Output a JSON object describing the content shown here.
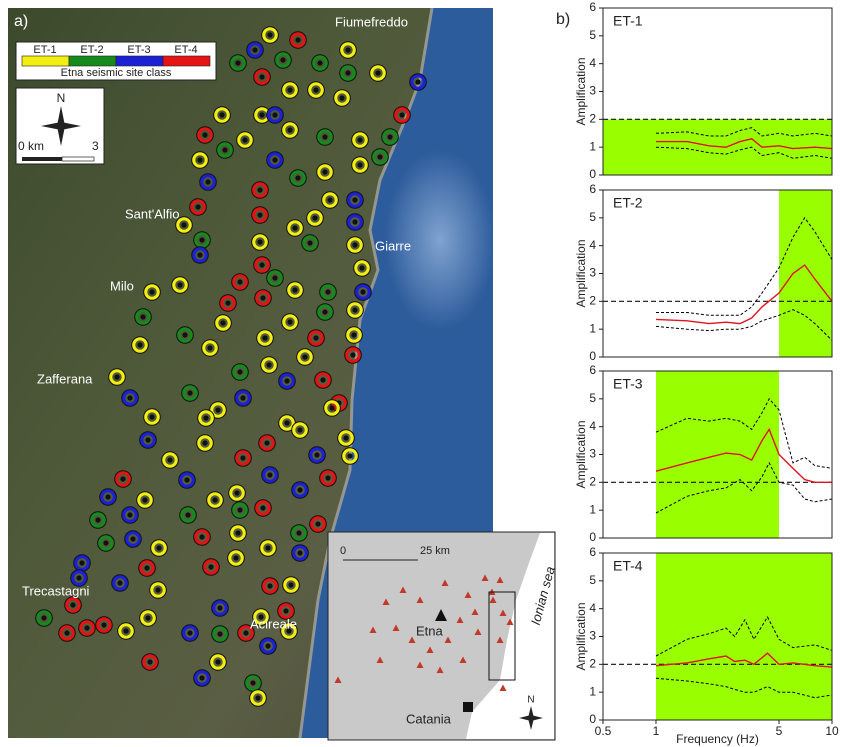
{
  "panel_a_label": "a)",
  "panel_b_label": "b)",
  "map": {
    "legend": {
      "title": "Etna seismic site class",
      "classes": [
        {
          "label": "ET-1",
          "color": "#f2ee12"
        },
        {
          "label": "ET-2",
          "color": "#168a1c"
        },
        {
          "label": "ET-3",
          "color": "#1c22d4"
        },
        {
          "label": "ET-4",
          "color": "#e51414"
        }
      ]
    },
    "north": "N",
    "scale_start": "0 km",
    "scale_end": "3",
    "places": [
      "Fiumefreddo",
      "Sant'Alfio",
      "Giarre",
      "Milo",
      "Zafferana",
      "Trecastagni",
      "Acireale"
    ],
    "inset": {
      "scale_start": "0",
      "scale_end": "25 km",
      "volcano": "Etna",
      "city": "Catania",
      "sea": "Ionian sea",
      "north": "N"
    }
  },
  "chart_data": [
    {
      "type": "line",
      "label": "ET-1",
      "xscale": "log",
      "xlim": [
        0.5,
        10
      ],
      "ylim": [
        0,
        6
      ],
      "yticks": [
        0,
        1,
        2,
        3,
        4,
        5,
        6
      ],
      "ylabel": "Amplification",
      "reference_line": 2,
      "highlight": {
        "xlim": [
          0.5,
          10
        ],
        "ylim": [
          0,
          2
        ],
        "color": "#99ff00"
      },
      "x": [
        1,
        1.5,
        2,
        2.5,
        3,
        3.5,
        4,
        5,
        6,
        8,
        10
      ],
      "series": [
        {
          "color": "#e0141e",
          "dash": "solid",
          "values": [
            1.2,
            1.2,
            1.05,
            1.0,
            1.2,
            1.3,
            1.0,
            1.05,
            0.95,
            1.0,
            0.95
          ]
        },
        {
          "color": "#000000",
          "dash": "dashed",
          "values": [
            1.5,
            1.55,
            1.4,
            1.4,
            1.6,
            1.7,
            1.4,
            1.5,
            1.4,
            1.5,
            1.4
          ]
        },
        {
          "color": "#000000",
          "dash": "dashed",
          "values": [
            1.0,
            0.95,
            0.8,
            0.75,
            0.9,
            1.0,
            0.7,
            0.8,
            0.6,
            0.7,
            0.6
          ]
        }
      ]
    },
    {
      "type": "line",
      "label": "ET-2",
      "xscale": "log",
      "xlim": [
        0.5,
        10
      ],
      "ylim": [
        0,
        6
      ],
      "yticks": [
        0,
        1,
        2,
        3,
        4,
        5,
        6
      ],
      "ylabel": "Amplification",
      "reference_line": 2,
      "highlight": {
        "xlim": [
          5,
          10
        ],
        "ylim": [
          0,
          6
        ],
        "color": "#99ff00"
      },
      "x": [
        1,
        1.5,
        2,
        2.5,
        3,
        3.5,
        4,
        5,
        6,
        7,
        8,
        10
      ],
      "series": [
        {
          "color": "#e0141e",
          "dash": "solid",
          "values": [
            1.35,
            1.3,
            1.2,
            1.25,
            1.2,
            1.4,
            1.8,
            2.3,
            3.0,
            3.3,
            2.8,
            2.0
          ]
        },
        {
          "color": "#000000",
          "dash": "dashed",
          "values": [
            1.6,
            1.6,
            1.5,
            1.5,
            1.5,
            1.8,
            2.3,
            3.2,
            4.3,
            5.0,
            4.5,
            3.5
          ]
        },
        {
          "color": "#000000",
          "dash": "dashed",
          "values": [
            1.1,
            1.0,
            0.95,
            1.0,
            1.0,
            1.1,
            1.3,
            1.5,
            1.7,
            1.5,
            1.2,
            0.6
          ]
        }
      ]
    },
    {
      "type": "line",
      "label": "ET-3",
      "xscale": "log",
      "xlim": [
        0.5,
        10
      ],
      "ylim": [
        0,
        6
      ],
      "yticks": [
        0,
        1,
        2,
        3,
        4,
        5,
        6
      ],
      "ylabel": "Amplification",
      "reference_line": 2,
      "highlight": {
        "xlim": [
          1,
          5
        ],
        "ylim": [
          0,
          6
        ],
        "color": "#99ff00"
      },
      "x": [
        1,
        1.5,
        2,
        2.5,
        3,
        3.5,
        4,
        4.4,
        5,
        6,
        7,
        8,
        10
      ],
      "series": [
        {
          "color": "#e0141e",
          "dash": "solid",
          "values": [
            2.4,
            2.7,
            2.9,
            3.05,
            3.0,
            2.8,
            3.5,
            3.9,
            3.0,
            2.5,
            2.1,
            2.0,
            2.0
          ]
        },
        {
          "color": "#000000",
          "dash": "dashed",
          "values": [
            3.8,
            4.3,
            4.2,
            4.3,
            4.2,
            3.9,
            4.5,
            5.0,
            4.6,
            2.7,
            2.9,
            2.6,
            2.5
          ]
        },
        {
          "color": "#000000",
          "dash": "dashed",
          "values": [
            0.9,
            1.5,
            1.7,
            1.8,
            2.1,
            1.7,
            2.2,
            2.7,
            2.0,
            1.9,
            1.4,
            1.3,
            1.4
          ]
        }
      ]
    },
    {
      "type": "line",
      "label": "ET-4",
      "xscale": "log",
      "xlim": [
        0.5,
        10
      ],
      "ylim": [
        0,
        6
      ],
      "yticks": [
        0,
        1,
        2,
        3,
        4,
        5,
        6
      ],
      "ylabel": "Amplification",
      "reference_line": 2,
      "xticks": [
        0.5,
        1,
        5,
        10
      ],
      "xlabel": "Frequency (Hz)",
      "highlight": {
        "xlim": [
          1,
          10
        ],
        "ylim": [
          0,
          6
        ],
        "color": "#99ff00"
      },
      "x": [
        1,
        1.5,
        2,
        2.5,
        2.8,
        3.2,
        3.6,
        4.3,
        5,
        6,
        8,
        10
      ],
      "series": [
        {
          "color": "#e0141e",
          "dash": "solid",
          "values": [
            1.95,
            2.05,
            2.2,
            2.3,
            2.1,
            2.15,
            2.0,
            2.4,
            2.0,
            2.05,
            1.95,
            1.9
          ]
        },
        {
          "color": "#000000",
          "dash": "dashed",
          "values": [
            2.3,
            2.9,
            3.1,
            3.3,
            3.0,
            3.6,
            2.9,
            3.7,
            2.9,
            2.6,
            2.7,
            2.5
          ]
        },
        {
          "color": "#000000",
          "dash": "dashed",
          "values": [
            1.5,
            1.4,
            1.3,
            1.2,
            1.1,
            1.0,
            1.0,
            1.2,
            1.0,
            1.0,
            0.8,
            0.9
          ]
        }
      ]
    }
  ]
}
